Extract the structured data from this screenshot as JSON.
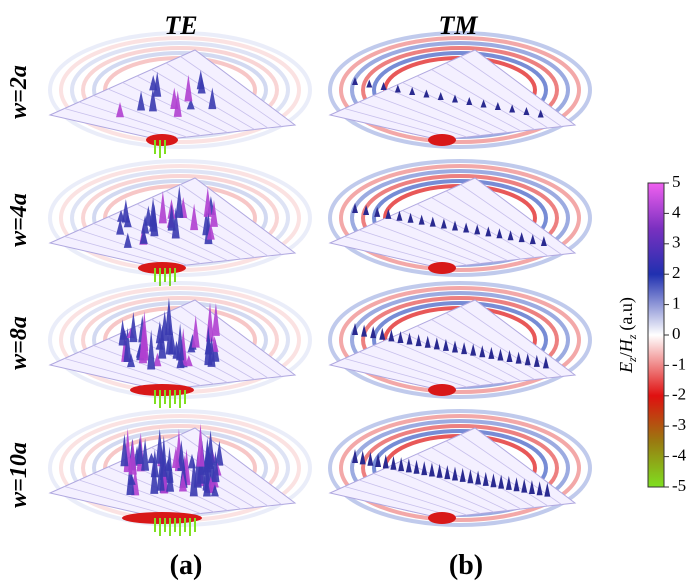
{
  "columns": [
    "TE",
    "TM"
  ],
  "rows": [
    "w=2a",
    "w=4a",
    "w=8a",
    "w=10a"
  ],
  "panel_labels": [
    "(a)",
    "(b)"
  ],
  "colorbar": {
    "label": {
      "field1": "E",
      "sub1": "z",
      "sep": "/",
      "field2": "H",
      "sub2": "z",
      "unit": "(a.u)"
    },
    "range": [
      -5,
      5
    ],
    "ticks": [
      5,
      4,
      3,
      2,
      1,
      0,
      -1,
      -2,
      -3,
      -4,
      -5
    ]
  }
}
